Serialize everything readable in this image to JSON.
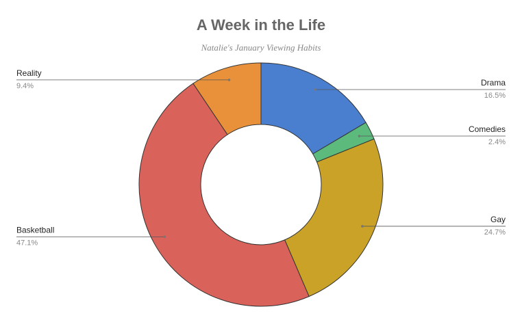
{
  "chart_data": {
    "type": "donut",
    "title": "A Week in the Life",
    "subtitle": "Natalie's January Viewing Habits",
    "categories": [
      "Drama",
      "Comedies",
      "Gay",
      "Basketball",
      "Reality"
    ],
    "values": [
      16.5,
      2.4,
      24.7,
      47.1,
      9.4
    ],
    "value_labels": [
      "16.5%",
      "2.4%",
      "24.7%",
      "47.1%",
      "9.4%"
    ],
    "colors": [
      "#4a7fd0",
      "#5dba7d",
      "#c9a227",
      "#d9625a",
      "#e8913a"
    ]
  }
}
